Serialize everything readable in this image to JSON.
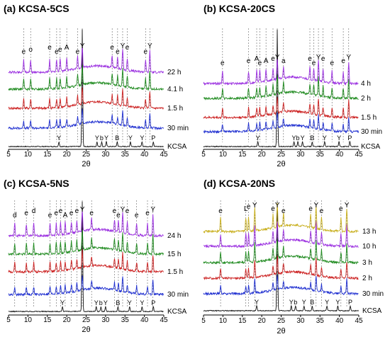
{
  "chart_data": [
    {
      "type": "line",
      "title": "(a) KCSA-5CS",
      "xlabel": "2θ",
      "ylabel": "",
      "xlim": [
        5,
        45
      ],
      "x_ticks": [
        "5",
        "10",
        "15",
        "20",
        "25",
        "30",
        "35",
        "40",
        "45"
      ],
      "series": [
        {
          "name": "KCSA",
          "color": "#111111"
        },
        {
          "name": "30 min",
          "color": "#1f2fd0"
        },
        {
          "name": "1.5 h",
          "color": "#cc2222"
        },
        {
          "name": "4.1 h",
          "color": "#1e8a1e"
        },
        {
          "name": "22 h",
          "color": "#9b30e0"
        }
      ],
      "peaks": [
        {
          "x": 8.9,
          "label": "e"
        },
        {
          "x": 10.7,
          "label": "o"
        },
        {
          "x": 15.6,
          "label": "e"
        },
        {
          "x": 17.4,
          "label": "e"
        },
        {
          "x": 18.3,
          "label": "e"
        },
        {
          "x": 20.0,
          "label": "A"
        },
        {
          "x": 22.8,
          "label": "e"
        },
        {
          "x": 24.0,
          "label": "Y"
        },
        {
          "x": 31.7,
          "label": "e"
        },
        {
          "x": 33.1,
          "label": "e"
        },
        {
          "x": 34.4,
          "label": "Y"
        },
        {
          "x": 35.6,
          "label": "e"
        },
        {
          "x": 40.3,
          "label": "e"
        },
        {
          "x": 41.4,
          "label": "Y"
        }
      ],
      "kcsa_peaks": [
        {
          "x": 18.0,
          "label": "Y"
        },
        {
          "x": 27.8,
          "label": "Y"
        },
        {
          "x": 29.0,
          "label": "b"
        },
        {
          "x": 30.2,
          "label": "Y"
        },
        {
          "x": 33.0,
          "label": "B"
        },
        {
          "x": 36.4,
          "label": "Y"
        },
        {
          "x": 39.4,
          "label": "Y"
        },
        {
          "x": 42.3,
          "label": "P"
        }
      ]
    },
    {
      "type": "line",
      "title": "(b) KCSA-20CS",
      "xlabel": "2θ",
      "ylabel": "",
      "xlim": [
        5,
        45
      ],
      "x_ticks": [
        "5",
        "10",
        "15",
        "20",
        "25",
        "30",
        "35",
        "40",
        "45"
      ],
      "series": [
        {
          "name": "KCSA",
          "color": "#111111"
        },
        {
          "name": "30 min",
          "color": "#1f2fd0"
        },
        {
          "name": "1.5 h",
          "color": "#cc2222"
        },
        {
          "name": "2 h",
          "color": "#1e8a1e"
        },
        {
          "name": "4 h",
          "color": "#9b30e0"
        }
      ],
      "peaks": [
        {
          "x": 9.9,
          "label": "e"
        },
        {
          "x": 16.6,
          "label": "e"
        },
        {
          "x": 18.7,
          "label": "A"
        },
        {
          "x": 19.5,
          "label": "e"
        },
        {
          "x": 21.1,
          "label": "A"
        },
        {
          "x": 22.9,
          "label": "e"
        },
        {
          "x": 24.0,
          "label": "Y"
        },
        {
          "x": 25.6,
          "label": "a"
        },
        {
          "x": 32.4,
          "label": "e"
        },
        {
          "x": 33.4,
          "label": "e"
        },
        {
          "x": 34.6,
          "label": "Y"
        },
        {
          "x": 35.8,
          "label": "e"
        },
        {
          "x": 38.1,
          "label": "e"
        },
        {
          "x": 41.0,
          "label": "e"
        },
        {
          "x": 42.4,
          "label": "Y"
        }
      ],
      "kcsa_peaks": [
        {
          "x": 19.0,
          "label": "Y"
        },
        {
          "x": 28.3,
          "label": "Y"
        },
        {
          "x": 29.3,
          "label": "b"
        },
        {
          "x": 30.5,
          "label": "Y"
        },
        {
          "x": 33.0,
          "label": "B"
        },
        {
          "x": 36.2,
          "label": "Y"
        },
        {
          "x": 39.9,
          "label": "Y"
        },
        {
          "x": 42.7,
          "label": "P"
        }
      ]
    },
    {
      "type": "line",
      "title": "(c) KCSA-5NS",
      "xlabel": "2θ",
      "ylabel": "",
      "xlim": [
        5,
        45
      ],
      "x_ticks": [
        "5",
        "10",
        "15",
        "20",
        "25",
        "30",
        "35",
        "40",
        "45"
      ],
      "series": [
        {
          "name": "KCSA",
          "color": "#111111"
        },
        {
          "name": "30 min",
          "color": "#1f2fd0"
        },
        {
          "name": "1.5 h",
          "color": "#cc2222"
        },
        {
          "name": "15 h",
          "color": "#1e8a1e"
        },
        {
          "name": "24 h",
          "color": "#9b30e0"
        }
      ],
      "peaks": [
        {
          "x": 6.6,
          "label": "d"
        },
        {
          "x": 9.6,
          "label": "e"
        },
        {
          "x": 11.5,
          "label": "d"
        },
        {
          "x": 15.7,
          "label": "e"
        },
        {
          "x": 17.3,
          "label": "e"
        },
        {
          "x": 18.4,
          "label": "e"
        },
        {
          "x": 19.6,
          "label": "A"
        },
        {
          "x": 21.2,
          "label": "e"
        },
        {
          "x": 22.6,
          "label": "e"
        },
        {
          "x": 24.0,
          "label": "Y"
        },
        {
          "x": 26.4,
          "label": "e"
        },
        {
          "x": 32.3,
          "label": "e"
        },
        {
          "x": 33.3,
          "label": "e"
        },
        {
          "x": 34.4,
          "label": "Y"
        },
        {
          "x": 35.6,
          "label": "e"
        },
        {
          "x": 38.0,
          "label": "e"
        },
        {
          "x": 40.8,
          "label": "e"
        },
        {
          "x": 42.2,
          "label": "Y"
        }
      ],
      "kcsa_peaks": [
        {
          "x": 18.9,
          "label": "Y"
        },
        {
          "x": 27.6,
          "label": "Y"
        },
        {
          "x": 28.8,
          "label": "b"
        },
        {
          "x": 30.0,
          "label": "Y"
        },
        {
          "x": 33.2,
          "label": "B"
        },
        {
          "x": 36.2,
          "label": "Y"
        },
        {
          "x": 39.4,
          "label": "Y"
        },
        {
          "x": 42.3,
          "label": "P"
        }
      ]
    },
    {
      "type": "line",
      "title": "(d) KCSA-20NS",
      "xlabel": "2θ",
      "ylabel": "",
      "xlim": [
        5,
        45
      ],
      "x_ticks": [
        "5",
        "10",
        "15",
        "20",
        "25",
        "30",
        "35",
        "40",
        "45"
      ],
      "series": [
        {
          "name": "KCSA",
          "color": "#111111"
        },
        {
          "name": "30 min",
          "color": "#1f2fd0"
        },
        {
          "name": "2 h",
          "color": "#cc2222"
        },
        {
          "name": "3 h",
          "color": "#1e8a1e"
        },
        {
          "name": "10 h",
          "color": "#9b30e0"
        },
        {
          "name": "13 h",
          "color": "#c9b020"
        }
      ],
      "peaks": [
        {
          "x": 9.4,
          "label": "e"
        },
        {
          "x": 15.9,
          "label": "L"
        },
        {
          "x": 16.6,
          "label": "e"
        },
        {
          "x": 18.2,
          "label": "Y"
        },
        {
          "x": 22.9,
          "label": "e"
        },
        {
          "x": 24.0,
          "label": "Y"
        },
        {
          "x": 25.6,
          "label": "e"
        },
        {
          "x": 32.6,
          "label": "e"
        },
        {
          "x": 34.0,
          "label": "Y"
        },
        {
          "x": 35.4,
          "label": "e"
        },
        {
          "x": 40.4,
          "label": "e"
        },
        {
          "x": 41.9,
          "label": "Y"
        }
      ],
      "kcsa_peaks": [
        {
          "x": 18.7,
          "label": "Y"
        },
        {
          "x": 27.6,
          "label": "Y"
        },
        {
          "x": 28.7,
          "label": "b"
        },
        {
          "x": 30.9,
          "label": "Y"
        },
        {
          "x": 33.0,
          "label": "B"
        },
        {
          "x": 36.8,
          "label": "Y"
        },
        {
          "x": 39.6,
          "label": "Y"
        },
        {
          "x": 42.8,
          "label": "P"
        }
      ]
    }
  ]
}
